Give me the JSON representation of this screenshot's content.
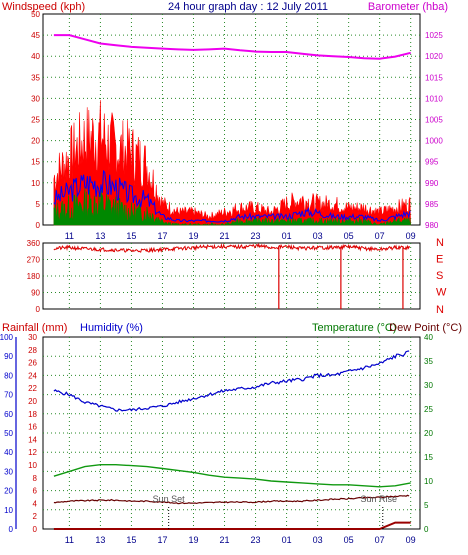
{
  "header": {
    "left_label": "Windspeed (kph)",
    "center_label": "24 hour graph day : 12 July 2011",
    "right_label": "Barometer (hba)"
  },
  "colors": {
    "wind_axis": "#cc0000",
    "baro_axis": "#cc00cc",
    "rain_axis": "#cc0000",
    "humidity_axis": "#0000cc",
    "temp_axis": "#007700",
    "gust": "#ff0000",
    "average": "#0000ff",
    "wind_low": "#008800",
    "barometer": "#ee00ee",
    "direction": "#dd0000",
    "humidity": "#0000cc",
    "temperature": "#119911",
    "dew_point": "#660000",
    "rainfall": "#990000",
    "grid": "#2a8a2a"
  },
  "x_ticks": [
    "11",
    "13",
    "15",
    "17",
    "19",
    "21",
    "23",
    "01",
    "03",
    "05",
    "07",
    "09"
  ],
  "chart_data": [
    {
      "type": "line",
      "id": "wind-barometer",
      "title": "24 hour graph day : 12 July 2011",
      "ylabel": "Windspeed (kph)",
      "y2label": "Barometer (hba)",
      "ylim": [
        0,
        50
      ],
      "y2lim": [
        980,
        1030
      ],
      "yticks": [
        "0",
        "5",
        "10",
        "15",
        "20",
        "25",
        "30",
        "35",
        "40",
        "45",
        "50"
      ],
      "y2ticks": [
        "980",
        "985",
        "990",
        "995",
        "1000",
        "1005",
        "1010",
        "1015",
        "1020",
        "1025"
      ],
      "x_hours": [
        10,
        11,
        12,
        13,
        14,
        15,
        16,
        17,
        18,
        19,
        20,
        21,
        22,
        23,
        24,
        25,
        26,
        27,
        28,
        29,
        30,
        31,
        32,
        33
      ],
      "series": [
        {
          "name": "Gust",
          "values": [
            11,
            16,
            20,
            21,
            18,
            17,
            14,
            5,
            3,
            3,
            2,
            3,
            4,
            4,
            3,
            5,
            6,
            5,
            5,
            4,
            4,
            3,
            4,
            5
          ]
        },
        {
          "name": "Average",
          "values": [
            6,
            8,
            10,
            10,
            9,
            7,
            6,
            2,
            1,
            1,
            1,
            1,
            2,
            2,
            2,
            2,
            3,
            3,
            2,
            2,
            2,
            1,
            2,
            3
          ]
        },
        {
          "name": "Low",
          "values": [
            3,
            4,
            5,
            5,
            4,
            3,
            3,
            1,
            0,
            0,
            0,
            0,
            1,
            1,
            1,
            1,
            1,
            1,
            1,
            1,
            1,
            0,
            1,
            1
          ]
        },
        {
          "name": "Barometer",
          "axis": "y2",
          "values": [
            1025,
            1025,
            1024,
            1023,
            1022.6,
            1022.2,
            1022,
            1021.8,
            1021.6,
            1021.5,
            1021.6,
            1021.8,
            1021.4,
            1021.1,
            1021,
            1021,
            1020.6,
            1020.2,
            1020,
            1019.8,
            1019.5,
            1019.4,
            1019.9,
            1020.8
          ]
        }
      ]
    },
    {
      "type": "line",
      "id": "wind-direction",
      "ylim": [
        0,
        360
      ],
      "yticks": [
        "0",
        "90",
        "180",
        "270",
        "360"
      ],
      "compass_labels": [
        "N",
        "W",
        "S",
        "E",
        "N"
      ],
      "x_hours": [
        10,
        11,
        12,
        13,
        14,
        15,
        16,
        17,
        18,
        19,
        20,
        21,
        22,
        23,
        24,
        25,
        26,
        27,
        28,
        29,
        30,
        31,
        32,
        33
      ],
      "series": [
        {
          "name": "Direction",
          "values": [
            330,
            335,
            328,
            325,
            322,
            318,
            320,
            325,
            330,
            334,
            340,
            340,
            338,
            345,
            0,
            340,
            330,
            335,
            0,
            340,
            330,
            325,
            0,
            335
          ]
        }
      ]
    },
    {
      "type": "line",
      "id": "rain-humidity-temperature",
      "labels": {
        "rainfall": "Rainfall (mm)",
        "humidity": "Humidity (%)",
        "temperature": "Temperature (°C)",
        "dew_point": "Dew Point (°C)"
      },
      "humidity_ticks": [
        "0",
        "10",
        "20",
        "30",
        "40",
        "50",
        "60",
        "70",
        "80",
        "90",
        "100"
      ],
      "humidity_lim": [
        0,
        100
      ],
      "rain_ticks": [
        "0",
        "2",
        "4",
        "6",
        "8",
        "10",
        "12",
        "14",
        "16",
        "18",
        "20",
        "22",
        "24",
        "26",
        "28",
        "30"
      ],
      "rain_lim": [
        0,
        30
      ],
      "temp_ticks": [
        "0",
        "5",
        "10",
        "15",
        "20",
        "25",
        "30",
        "35",
        "40"
      ],
      "temp_lim": [
        0,
        40
      ],
      "annotations": [
        "Sun Set",
        "Sun Rise"
      ],
      "sunset_hour": 17.4,
      "sunrise_hour": 31.2,
      "x_hours": [
        10,
        11,
        12,
        13,
        14,
        15,
        16,
        17,
        18,
        19,
        20,
        21,
        22,
        23,
        24,
        25,
        26,
        27,
        28,
        29,
        30,
        31,
        32,
        33
      ],
      "series": [
        {
          "name": "Humidity",
          "axis": "humidity",
          "values": [
            72,
            70,
            66,
            64,
            62,
            62,
            63,
            64,
            66,
            68,
            70,
            72,
            73,
            74,
            76,
            77,
            78,
            80,
            80,
            82,
            84,
            86,
            90,
            92
          ]
        },
        {
          "name": "Temperature",
          "axis": "temperature",
          "values": [
            11,
            12,
            13,
            13.4,
            13.4,
            13.2,
            13,
            12.6,
            12.2,
            11.8,
            11.2,
            10.8,
            10.6,
            10.4,
            10,
            9.8,
            9.6,
            9.4,
            9.2,
            9.2,
            9,
            8.8,
            9,
            9.6
          ]
        },
        {
          "name": "Dew Point",
          "axis": "temperature",
          "values": [
            5.5,
            5.8,
            5.9,
            6,
            6,
            5.8,
            5.8,
            5.6,
            5.4,
            5.4,
            5.5,
            5.6,
            5.6,
            5.6,
            5.8,
            5.8,
            5.8,
            6,
            6.2,
            6.3,
            6.5,
            6.6,
            6.8,
            7
          ]
        },
        {
          "name": "Rainfall",
          "axis": "rain",
          "values": [
            0,
            0,
            0,
            0,
            0,
            0,
            0,
            0,
            0,
            0,
            0,
            0,
            0,
            0,
            0,
            0,
            0,
            0,
            0,
            0,
            0,
            0,
            1,
            1
          ]
        }
      ]
    }
  ]
}
